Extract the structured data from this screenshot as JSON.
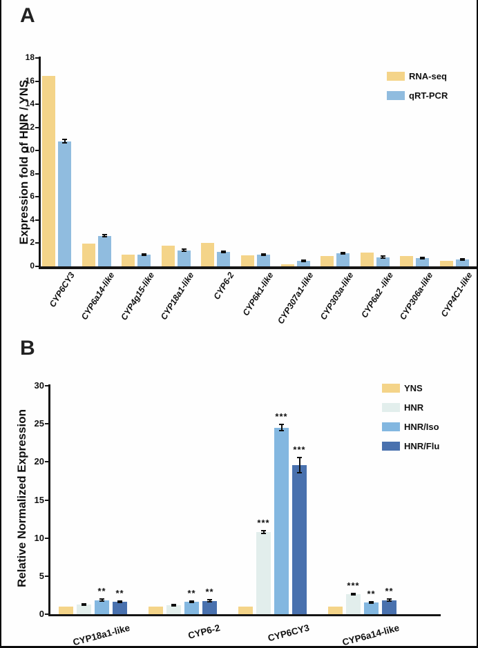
{
  "figure_type": "two-panel grouped bar chart",
  "chart_data": [
    {
      "panel_label": "A",
      "type": "bar",
      "title": "",
      "xlabel": "",
      "ylabel": "Expression fold of  HNR / YNS",
      "ylim": [
        0,
        18
      ],
      "ytick_step": 2,
      "grid": false,
      "legend_position": "top-right",
      "axis_color": "#151515",
      "categories": [
        "CYP6CY3",
        "CYP6a14-like",
        "CYP4g15-like",
        "CYP18a1-like",
        "CYP6-2",
        "CYP6k1-like",
        "CYP307a1-like",
        "CYP303a-like",
        "CYP6a2 -like",
        "CYP306a-like",
        "CYP4C1-like"
      ],
      "series": [
        {
          "name": "RNA-seq",
          "color": "#F4D489",
          "values": [
            16.45,
            1.95,
            1.0,
            1.8,
            2.0,
            0.95,
            0.2,
            0.9,
            1.2,
            0.9,
            0.5
          ],
          "errors": null,
          "sig": null
        },
        {
          "name": "qRT-PCR",
          "color": "#90BCDF",
          "values": [
            10.8,
            2.65,
            1.0,
            1.4,
            1.25,
            1.0,
            0.45,
            1.15,
            0.8,
            0.72,
            0.6
          ],
          "errors": [
            0.15,
            0.1,
            0.07,
            0.07,
            0.06,
            0.07,
            0.06,
            0.06,
            0.07,
            0.06,
            0.06
          ],
          "sig": null
        }
      ]
    },
    {
      "panel_label": "B",
      "type": "bar",
      "title": "",
      "xlabel": "",
      "ylabel": "Relative Normalized Expression",
      "ylim": [
        0,
        30
      ],
      "ytick_step": 5,
      "grid": false,
      "legend_position": "top-right",
      "axis_color": "#151515",
      "categories": [
        "CYP18a1-like",
        "CYP6-2",
        "CYP6CY3",
        "CYP6a14-like"
      ],
      "series": [
        {
          "name": "YNS",
          "color": "#F4D489",
          "values": [
            1.0,
            1.0,
            1.0,
            1.0
          ],
          "errors": null,
          "sig": null
        },
        {
          "name": "HNR",
          "color": "#E2EEEC",
          "values": [
            1.3,
            1.2,
            10.8,
            2.6
          ],
          "errors": [
            0.07,
            0.08,
            0.2,
            0.1
          ],
          "sig": [
            "",
            "",
            "***",
            "***"
          ]
        },
        {
          "name": "HNR/Iso",
          "color": "#83B7E0",
          "values": [
            1.85,
            1.65,
            24.5,
            1.55
          ],
          "errors": [
            0.12,
            0.1,
            0.4,
            0.12
          ],
          "sig": [
            "**",
            "**",
            "***",
            "**"
          ]
        },
        {
          "name": "HNR/Flu",
          "color": "#4971AE",
          "values": [
            1.65,
            1.75,
            19.6,
            1.85
          ],
          "errors": [
            0.1,
            0.12,
            1.0,
            0.15
          ],
          "sig": [
            "**",
            "**",
            "***",
            "**"
          ]
        }
      ]
    }
  ]
}
